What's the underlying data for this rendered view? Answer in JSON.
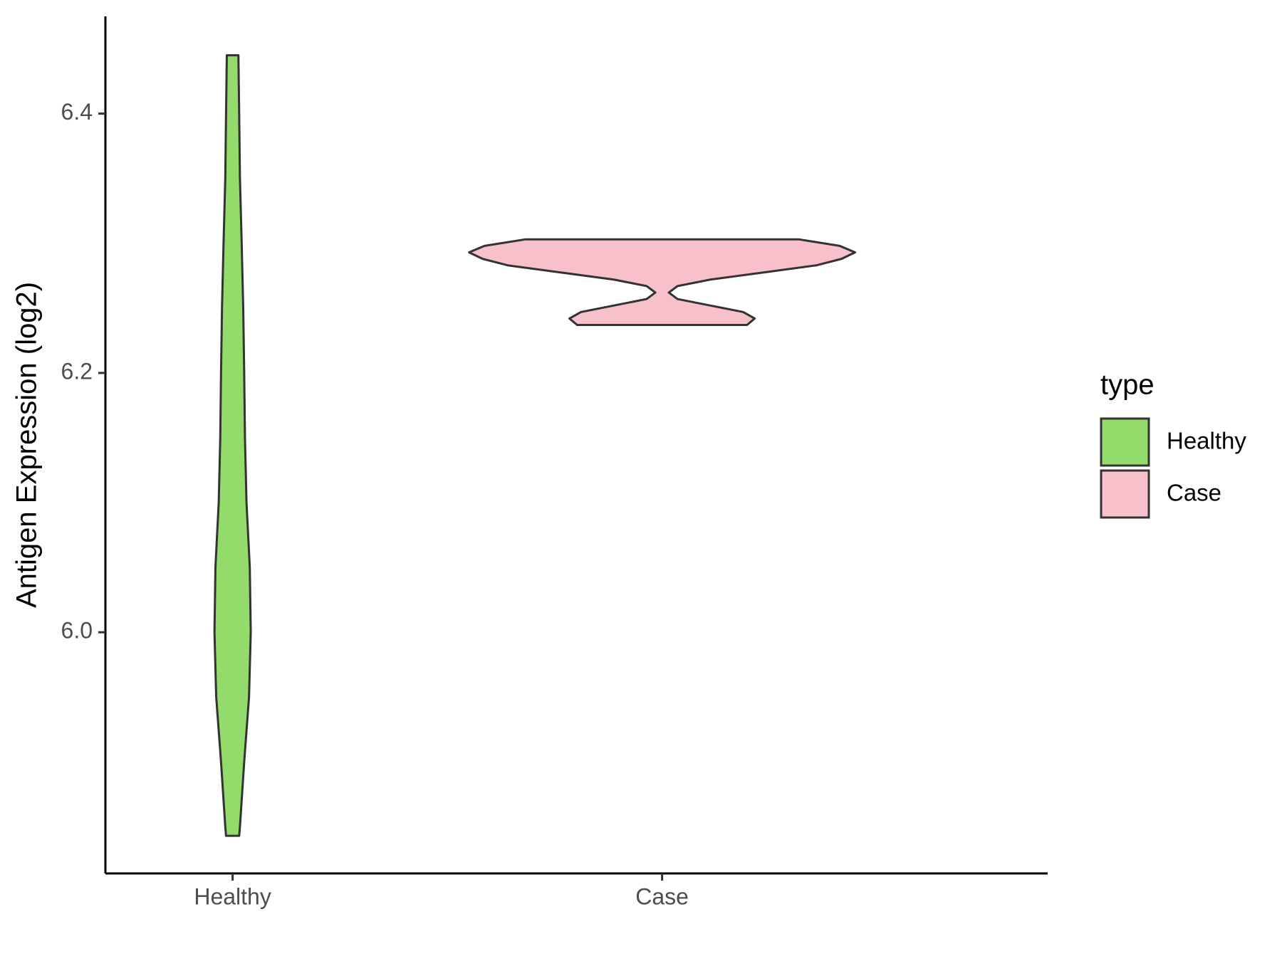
{
  "chart_data": {
    "type": "violin",
    "y_label": "Antigen Expression (log2)",
    "categories": [
      "Healthy",
      "Case"
    ],
    "legend_title": "type",
    "legend_position": "right",
    "series": [
      {
        "name": "Healthy",
        "color": "#93DB6B",
        "y": [
          6.445,
          6.4,
          6.35,
          6.3,
          6.25,
          6.2,
          6.15,
          6.1,
          6.05,
          6.0,
          5.95,
          5.9,
          5.85,
          5.843
        ],
        "width": [
          0.03,
          0.034,
          0.038,
          0.047,
          0.055,
          0.06,
          0.064,
          0.072,
          0.089,
          0.094,
          0.085,
          0.06,
          0.038,
          0.034
        ]
      },
      {
        "name": "Case",
        "color": "#F8C0CB",
        "y": [
          6.303,
          6.298,
          6.293,
          6.288,
          6.283,
          6.278,
          6.272,
          6.267,
          6.262,
          6.257,
          6.252,
          6.247,
          6.242,
          6.237
        ],
        "width": [
          0.71,
          0.92,
          1.0,
          0.93,
          0.8,
          0.55,
          0.25,
          0.08,
          0.035,
          0.08,
          0.25,
          0.42,
          0.48,
          0.44
        ]
      }
    ],
    "ylim": [
      5.814,
      6.475
    ],
    "yticks": [
      {
        "value": 6,
        "label": "6.0"
      },
      6.2,
      6.4
    ],
    "grid": false
  }
}
